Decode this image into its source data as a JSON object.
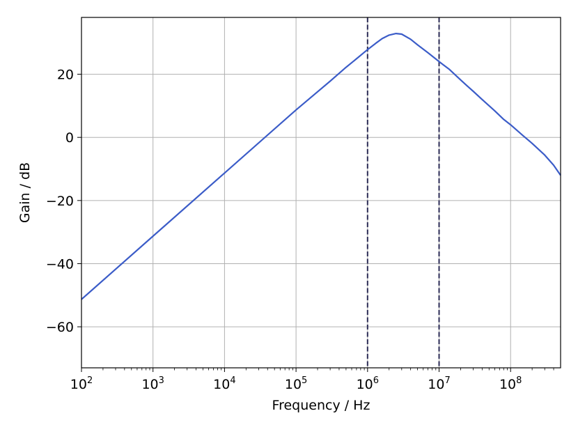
{
  "chart_data": {
    "type": "line",
    "title": "",
    "xlabel": "Frequency / Hz",
    "ylabel": "Gain / dB",
    "xscale": "log",
    "xlim": [
      100,
      500000000
    ],
    "ylim": [
      -73,
      38
    ],
    "grid": true,
    "x_ticks": [
      {
        "value": 100,
        "base": "10",
        "exp": "2"
      },
      {
        "value": 1000,
        "base": "10",
        "exp": "3"
      },
      {
        "value": 10000,
        "base": "10",
        "exp": "4"
      },
      {
        "value": 100000,
        "base": "10",
        "exp": "5"
      },
      {
        "value": 1000000,
        "base": "10",
        "exp": "6"
      },
      {
        "value": 10000000,
        "base": "10",
        "exp": "7"
      },
      {
        "value": 100000000,
        "base": "10",
        "exp": "8"
      }
    ],
    "y_ticks": [
      {
        "value": 20,
        "label": "20"
      },
      {
        "value": 0,
        "label": "0"
      },
      {
        "value": -20,
        "label": "−20"
      },
      {
        "value": -40,
        "label": "−40"
      },
      {
        "value": -60,
        "label": "−60"
      }
    ],
    "vlines": [
      1000000,
      10000000
    ],
    "colors": {
      "line": "#3b5cc8",
      "vline": "#2b2b55",
      "grid": "#b0b0b0"
    },
    "series": [
      {
        "x": [
          100,
          1000,
          10000,
          100000,
          300000,
          500000,
          700000,
          1000000,
          1300000,
          1600000,
          2000000,
          2500000,
          3000000,
          4000000,
          5000000,
          7000000,
          10000000,
          14000000,
          20000000,
          25000000,
          30000000,
          40000000,
          60000000,
          80000000,
          100000000,
          150000000,
          200000000,
          300000000,
          400000000,
          500000000
        ],
        "y": [
          -51.3,
          -31.3,
          -11.3,
          8.7,
          17.8,
          22.2,
          24.9,
          27.8,
          29.8,
          31.3,
          32.4,
          32.9,
          32.7,
          31.1,
          29.3,
          26.8,
          24.0,
          21.5,
          18.2,
          16.2,
          14.6,
          12.0,
          8.4,
          5.7,
          4.0,
          0.5,
          -1.9,
          -5.6,
          -8.8,
          -12.0
        ]
      }
    ]
  }
}
